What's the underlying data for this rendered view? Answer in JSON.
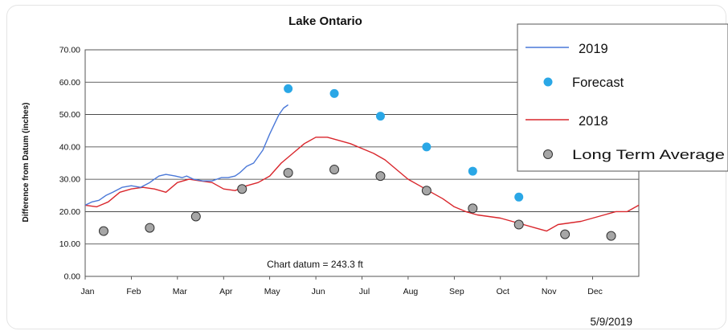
{
  "chart_data": {
    "type": "line",
    "title": "Lake Ontario",
    "ylabel": "Difference from Datum (inches)",
    "xlabel": "",
    "ylim": [
      0,
      70
    ],
    "yticks": [
      "0.00",
      "10.00",
      "20.00",
      "30.00",
      "40.00",
      "50.00",
      "60.00",
      "70.00"
    ],
    "xlim": [
      0,
      12
    ],
    "months": [
      "Jan",
      "Feb",
      "Mar",
      "Apr",
      "May",
      "Jun",
      "Jul",
      "Aug",
      "Sep",
      "Oct",
      "Nov",
      "Dec"
    ],
    "grid": "horizontal",
    "legend_position": "top-right",
    "annotation": "Chart datum = 243.3 ft",
    "date_stamp": "5/9/2019",
    "series": [
      {
        "name": "2019",
        "kind": "line",
        "color": "#4a78d8",
        "x": [
          0.0,
          0.15,
          0.3,
          0.45,
          0.6,
          0.8,
          1.0,
          1.2,
          1.4,
          1.5,
          1.6,
          1.75,
          1.95,
          2.1,
          2.2,
          2.35,
          2.55,
          2.75,
          2.95,
          3.1,
          3.25,
          3.35,
          3.5,
          3.65,
          3.85,
          4.0,
          4.1,
          4.2,
          4.3,
          4.4
        ],
        "y": [
          22,
          23,
          23.5,
          25,
          26,
          27.5,
          28,
          27.5,
          29,
          30,
          31,
          31.5,
          31,
          30.5,
          31,
          30,
          29.5,
          29.5,
          30.5,
          30.5,
          31,
          32,
          34,
          35,
          39,
          44,
          47,
          50,
          52,
          53
        ]
      },
      {
        "name": "Forecast",
        "kind": "scatter",
        "color": "#2aa7e6",
        "x": [
          4.4,
          5.4,
          6.4,
          7.4,
          8.4,
          9.4
        ],
        "y": [
          58,
          56.5,
          49.5,
          40,
          32.5,
          24.5
        ]
      },
      {
        "name": "2018",
        "kind": "line",
        "color": "#d9262c",
        "x": [
          0.0,
          0.25,
          0.5,
          0.75,
          1.0,
          1.25,
          1.5,
          1.75,
          2.0,
          2.25,
          2.5,
          2.75,
          3.0,
          3.25,
          3.5,
          3.75,
          4.0,
          4.25,
          4.5,
          4.75,
          5.0,
          5.25,
          5.5,
          5.75,
          6.0,
          6.25,
          6.5,
          6.75,
          7.0,
          7.25,
          7.5,
          7.75,
          8.0,
          8.25,
          8.5,
          8.75,
          9.0,
          9.25,
          9.5,
          9.75,
          10.0,
          10.25,
          10.5,
          10.75,
          11.0,
          11.25,
          11.5,
          11.75,
          12.0
        ],
        "y": [
          22,
          21.5,
          23,
          26,
          27,
          27.5,
          27,
          26,
          29,
          30,
          29.5,
          29,
          27,
          26.5,
          28,
          29,
          31,
          35,
          38,
          41,
          43,
          43,
          42,
          41,
          39.5,
          38,
          36,
          33,
          30,
          28,
          26,
          24,
          21.5,
          20,
          19,
          18.5,
          18,
          17,
          16,
          15,
          14,
          16,
          16.5,
          17,
          18,
          19,
          20,
          20,
          22
        ]
      },
      {
        "name": "Long Term Average",
        "kind": "scatter",
        "color": "#a6a6a6",
        "x": [
          0.4,
          1.4,
          2.4,
          3.4,
          4.4,
          5.4,
          6.4,
          7.4,
          8.4,
          9.4,
          10.4,
          11.4
        ],
        "y": [
          14,
          15,
          18.5,
          27,
          32,
          33,
          31,
          26.5,
          21,
          16,
          13,
          12.5
        ]
      }
    ]
  }
}
